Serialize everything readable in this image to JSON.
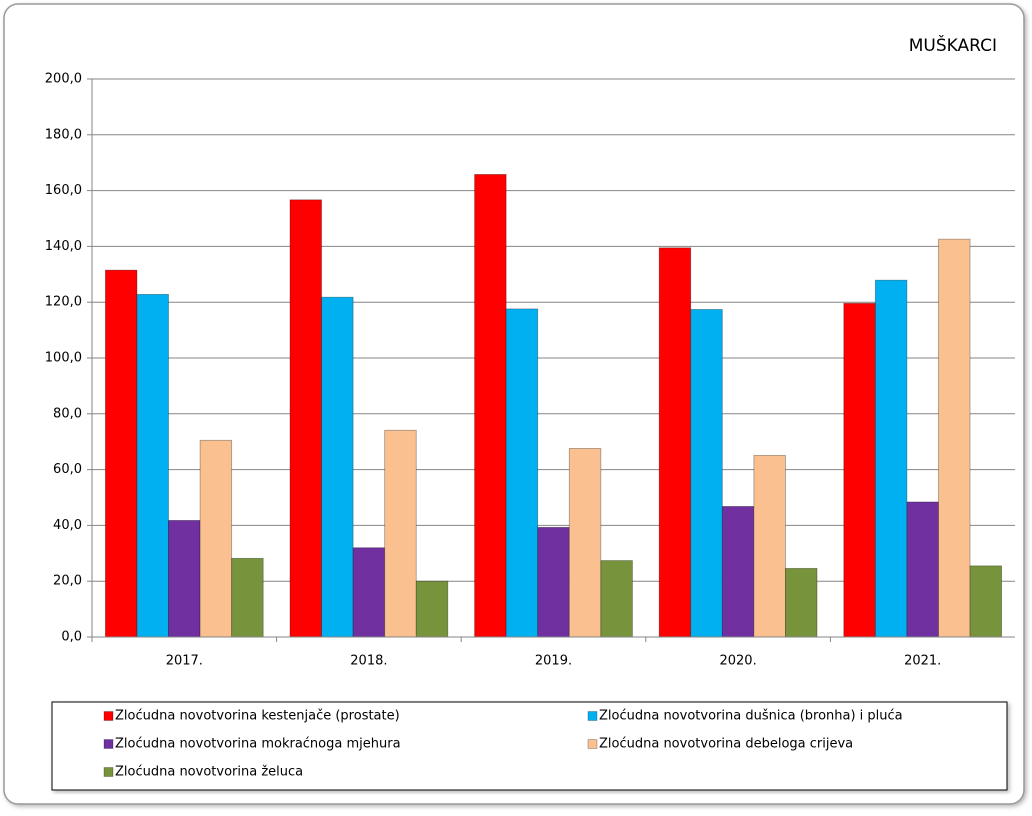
{
  "chart_data": {
    "type": "bar",
    "title": "MUŠKARCI",
    "categories": [
      "2017.",
      "2018.",
      "2019.",
      "2020.",
      "2021."
    ],
    "series": [
      {
        "name": "Zloćudna novotvorina kestenjače (prostate)",
        "color": "#ff0000",
        "values": [
          131.5,
          156.7,
          165.8,
          139.5,
          119.6
        ]
      },
      {
        "name": "Zloćudna novotvorina dušnica (bronha) i pluća",
        "color": "#00b0f0",
        "values": [
          122.8,
          121.8,
          117.6,
          117.4,
          127.9
        ]
      },
      {
        "name": "Zloćudna novotvorina mokraćnoga mjehura",
        "color": "#7030a0",
        "values": [
          41.8,
          32.0,
          39.3,
          46.8,
          48.4
        ]
      },
      {
        "name": "Zloćudna novotvorina debeloga crijeva",
        "color": "#fac090",
        "values": [
          70.5,
          74.1,
          67.6,
          65.1,
          142.6
        ]
      },
      {
        "name": "Zloćudna novotvorina želuca",
        "color": "#77933c",
        "values": [
          28.2,
          20.0,
          27.4,
          24.6,
          25.5
        ]
      }
    ],
    "ylim": [
      0,
      200
    ],
    "yticks": [
      {
        "value": 0,
        "label": "0,0"
      },
      {
        "value": 20,
        "label": "20,0"
      },
      {
        "value": 40,
        "label": "40,0"
      },
      {
        "value": 60,
        "label": "60,0"
      },
      {
        "value": 80,
        "label": "80,0"
      },
      {
        "value": 100,
        "label": "100,0"
      },
      {
        "value": 120,
        "label": "120,0"
      },
      {
        "value": 140,
        "label": "140,0"
      },
      {
        "value": 160,
        "label": "160,0"
      },
      {
        "value": 180,
        "label": "180,0"
      },
      {
        "value": 200,
        "label": "200,0"
      }
    ],
    "grid": true,
    "legend": "bottom"
  }
}
